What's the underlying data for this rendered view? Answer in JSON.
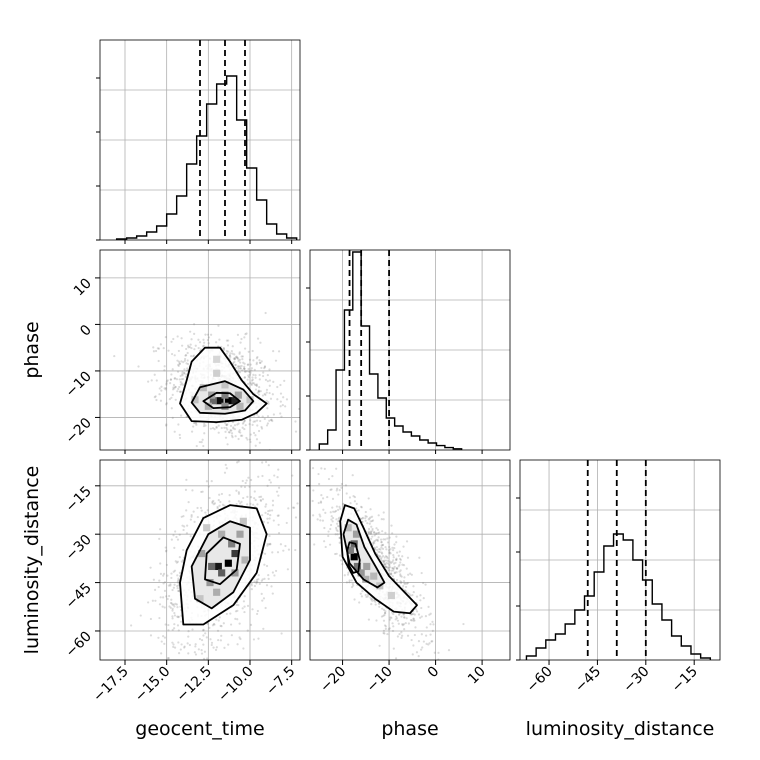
{
  "chart_data": {
    "type": "corner",
    "parameters": [
      "geocent_time",
      "phase",
      "luminosity_distance"
    ],
    "axis_labels": {
      "x": [
        "geocent_time",
        "phase",
        "luminosity_distance"
      ],
      "y": [
        "phase",
        "luminosity_distance"
      ]
    },
    "ranges": {
      "geocent_time": [
        -19.0,
        -7.0
      ],
      "phase": [
        -27.0,
        16.0
      ],
      "luminosity_distance": [
        -69.0,
        -7.0
      ]
    },
    "ticks": {
      "geocent_time": [
        -17.5,
        -15.0,
        -12.5,
        -10.0,
        -7.5
      ],
      "phase": [
        -20,
        -10,
        0,
        10
      ],
      "luminosity_distance": [
        -60,
        -45,
        -30,
        -15
      ]
    },
    "tick_labels": {
      "geocent_time": [
        "−17.5",
        "−15.0",
        "−12.5",
        "−10.0",
        "−7.5"
      ],
      "phase": [
        "−20",
        "−10",
        "0",
        "10"
      ],
      "luminosity_distance": [
        "−60",
        "−45",
        "−30",
        "−15"
      ]
    },
    "quantiles": {
      "geocent_time": [
        -13.0,
        -11.5,
        -10.3
      ],
      "phase": [
        -18.5,
        -16.0,
        -10.0
      ],
      "luminosity_distance": [
        -48.0,
        -39.0,
        -30.0
      ]
    },
    "histograms": {
      "geocent_time": {
        "edges": [
          -18.0,
          -17.4,
          -16.8,
          -16.2,
          -15.6,
          -15.0,
          -14.4,
          -13.8,
          -13.2,
          -12.6,
          -12.0,
          -11.4,
          -10.8,
          -10.2,
          -9.6,
          -9.0,
          -8.4,
          -7.8,
          -7.2
        ],
        "counts": [
          0.005,
          0.01,
          0.02,
          0.04,
          0.07,
          0.13,
          0.22,
          0.38,
          0.52,
          0.68,
          0.78,
          0.82,
          0.6,
          0.36,
          0.2,
          0.08,
          0.03,
          0.01
        ]
      },
      "phase": {
        "edges": [
          -25.0,
          -23.2,
          -21.4,
          -19.6,
          -17.8,
          -16.0,
          -14.2,
          -12.4,
          -10.6,
          -8.8,
          -7.0,
          -5.2,
          -3.4,
          -1.6,
          0.2,
          2.0,
          3.8,
          5.6
        ],
        "counts": [
          0.03,
          0.1,
          0.4,
          0.7,
          0.99,
          0.62,
          0.38,
          0.26,
          0.16,
          0.12,
          0.09,
          0.07,
          0.05,
          0.035,
          0.022,
          0.012,
          0.006
        ]
      },
      "luminosity_distance": {
        "edges": [
          -67.0,
          -64.0,
          -61.0,
          -58.0,
          -55.0,
          -52.0,
          -49.0,
          -46.0,
          -43.0,
          -40.0,
          -37.0,
          -34.0,
          -31.0,
          -28.0,
          -25.0,
          -22.0,
          -19.0,
          -16.0,
          -13.0,
          -10.0
        ],
        "counts": [
          0.02,
          0.06,
          0.1,
          0.13,
          0.18,
          0.25,
          0.32,
          0.44,
          0.57,
          0.63,
          0.6,
          0.5,
          0.4,
          0.28,
          0.2,
          0.12,
          0.07,
          0.03,
          0.01
        ]
      }
    },
    "density_panels": [
      {
        "x": "geocent_time",
        "y": "phase",
        "peak": [
          -11.5,
          -16.5
        ],
        "contours": [
          [
            [
              -14.2,
              -17
            ],
            [
              -13.8,
              -12
            ],
            [
              -13.5,
              -8
            ],
            [
              -12.7,
              -5
            ],
            [
              -11.8,
              -5
            ],
            [
              -11.2,
              -8
            ],
            [
              -10.5,
              -12
            ],
            [
              -9.8,
              -15
            ],
            [
              -9.0,
              -17
            ],
            [
              -9.6,
              -19
            ],
            [
              -10.5,
              -20.5
            ],
            [
              -12.0,
              -21
            ],
            [
              -13.5,
              -20.8
            ]
          ],
          [
            [
              -13.5,
              -16.8
            ],
            [
              -13.0,
              -13.5
            ],
            [
              -11.5,
              -12.2
            ],
            [
              -10.4,
              -14
            ],
            [
              -9.8,
              -16.5
            ],
            [
              -10.3,
              -18.5
            ],
            [
              -11.5,
              -19.2
            ],
            [
              -13.0,
              -19
            ]
          ],
          [
            [
              -12.8,
              -16.5
            ],
            [
              -12.0,
              -14.7
            ],
            [
              -11.2,
              -14.8
            ],
            [
              -10.6,
              -16.5
            ],
            [
              -11.2,
              -17.8
            ],
            [
              -12.2,
              -18
            ]
          ]
        ],
        "hist2d": [
          {
            "x": -11.3,
            "y": -16.4,
            "w": 1.0
          },
          {
            "x": -11.8,
            "y": -16.4,
            "w": 0.95
          },
          {
            "x": -10.9,
            "y": -16.4,
            "w": 0.85
          },
          {
            "x": -12.2,
            "y": -16.4,
            "w": 0.55
          },
          {
            "x": -11.5,
            "y": -15.2,
            "w": 0.45
          },
          {
            "x": -11.5,
            "y": -17.6,
            "w": 0.4
          },
          {
            "x": -12.3,
            "y": -15.2,
            "w": 0.3
          },
          {
            "x": -10.7,
            "y": -15.2,
            "w": 0.3
          },
          {
            "x": -12.5,
            "y": -17.6,
            "w": 0.25
          },
          {
            "x": -10.6,
            "y": -17.6,
            "w": 0.22
          },
          {
            "x": -12.8,
            "y": -13.6,
            "w": 0.18
          },
          {
            "x": -11.5,
            "y": -13.0,
            "w": 0.15
          },
          {
            "x": -13.3,
            "y": -16.2,
            "w": 0.17
          },
          {
            "x": -10.0,
            "y": -16.2,
            "w": 0.15
          },
          {
            "x": -12.0,
            "y": -10.5,
            "w": 0.1
          },
          {
            "x": -12.0,
            "y": -7.5,
            "w": 0.07
          }
        ]
      },
      {
        "x": "geocent_time",
        "y": "luminosity_distance",
        "peak": [
          -11.5,
          -39.0
        ],
        "contours": [
          [
            [
              -14.0,
              -58
            ],
            [
              -14.2,
              -45
            ],
            [
              -13.8,
              -35
            ],
            [
              -12.8,
              -25
            ],
            [
              -11.2,
              -21
            ],
            [
              -9.6,
              -22
            ],
            [
              -9.0,
              -30
            ],
            [
              -9.6,
              -42
            ],
            [
              -11.0,
              -52
            ],
            [
              -12.8,
              -58
            ]
          ],
          [
            [
              -13.3,
              -50
            ],
            [
              -13.5,
              -40
            ],
            [
              -12.5,
              -30
            ],
            [
              -11.2,
              -26
            ],
            [
              -10.0,
              -28
            ],
            [
              -10.0,
              -38
            ],
            [
              -11.0,
              -48
            ],
            [
              -12.3,
              -53
            ]
          ],
          [
            [
              -12.7,
              -44
            ],
            [
              -12.6,
              -36
            ],
            [
              -11.6,
              -31
            ],
            [
              -10.6,
              -33
            ],
            [
              -10.8,
              -41
            ],
            [
              -11.8,
              -45.5
            ]
          ]
        ],
        "hist2d": [
          {
            "x": -11.3,
            "y": -39,
            "w": 1.0
          },
          {
            "x": -11.9,
            "y": -40,
            "w": 0.9
          },
          {
            "x": -10.9,
            "y": -36,
            "w": 0.75
          },
          {
            "x": -11.7,
            "y": -42,
            "w": 0.6
          },
          {
            "x": -12.3,
            "y": -40,
            "w": 0.55
          },
          {
            "x": -11.1,
            "y": -33,
            "w": 0.45
          },
          {
            "x": -10.9,
            "y": -42,
            "w": 0.35
          },
          {
            "x": -12.4,
            "y": -45,
            "w": 0.35
          },
          {
            "x": -10.6,
            "y": -30,
            "w": 0.3
          },
          {
            "x": -12.9,
            "y": -36,
            "w": 0.3
          },
          {
            "x": -12.0,
            "y": -48,
            "w": 0.25
          },
          {
            "x": -11.7,
            "y": -30,
            "w": 0.25
          },
          {
            "x": -10.3,
            "y": -38,
            "w": 0.22
          },
          {
            "x": -13.0,
            "y": -50,
            "w": 0.15
          },
          {
            "x": -10.4,
            "y": -26,
            "w": 0.15
          },
          {
            "x": -12.6,
            "y": -28,
            "w": 0.12
          }
        ]
      },
      {
        "x": "phase",
        "y": "luminosity_distance",
        "peak": [
          -17.5,
          -37.0
        ],
        "contours": [
          [
            [
              -20.5,
              -26
            ],
            [
              -19.5,
              -21
            ],
            [
              -17.5,
              -22
            ],
            [
              -15.5,
              -28
            ],
            [
              -13,
              -36
            ],
            [
              -10,
              -43
            ],
            [
              -6,
              -49
            ],
            [
              -4,
              -52
            ],
            [
              -5.5,
              -54.5
            ],
            [
              -9,
              -54
            ],
            [
              -13,
              -50
            ],
            [
              -17,
              -45
            ],
            [
              -20,
              -37
            ]
          ],
          [
            [
              -19.8,
              -30
            ],
            [
              -18.8,
              -25.5
            ],
            [
              -17.0,
              -27
            ],
            [
              -15.3,
              -34
            ],
            [
              -12.5,
              -41
            ],
            [
              -11,
              -45
            ],
            [
              -12.5,
              -46.5
            ],
            [
              -15.5,
              -44
            ],
            [
              -18.5,
              -39
            ]
          ],
          [
            [
              -19.0,
              -35
            ],
            [
              -18.5,
              -32.5
            ],
            [
              -17.2,
              -33
            ],
            [
              -16.3,
              -38
            ],
            [
              -16.6,
              -41.5
            ],
            [
              -17.7,
              -42
            ],
            [
              -18.7,
              -39.5
            ]
          ]
        ],
        "hist2d": [
          {
            "x": -17.5,
            "y": -37,
            "w": 1.0
          },
          {
            "x": -17.5,
            "y": -33,
            "w": 0.55
          },
          {
            "x": -16.8,
            "y": -40,
            "w": 0.5
          },
          {
            "x": -18.3,
            "y": -35,
            "w": 0.45
          },
          {
            "x": -16.0,
            "y": -42,
            "w": 0.35
          },
          {
            "x": -17.0,
            "y": -30,
            "w": 0.3
          },
          {
            "x": -14.8,
            "y": -40,
            "w": 0.3
          },
          {
            "x": -15.0,
            "y": -44,
            "w": 0.25
          },
          {
            "x": -13.3,
            "y": -43,
            "w": 0.2
          },
          {
            "x": -18.8,
            "y": -28,
            "w": 0.2
          },
          {
            "x": -12.0,
            "y": -46,
            "w": 0.15
          },
          {
            "x": -9.5,
            "y": -49,
            "w": 0.1
          }
        ]
      }
    ],
    "scatter_colors": {
      "points": "#7f7f7f",
      "lines": "#000000",
      "grid": "#b0b0b0"
    }
  }
}
